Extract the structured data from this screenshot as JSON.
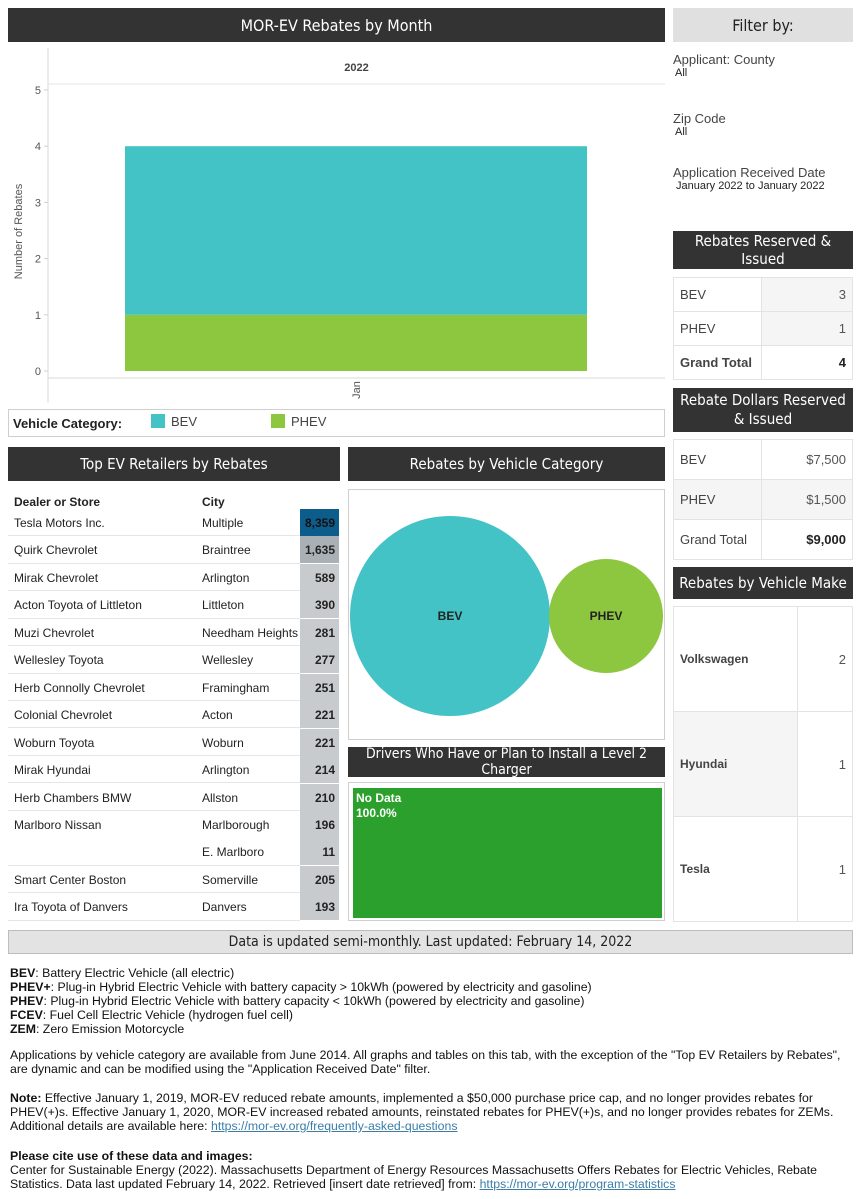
{
  "titles": {
    "main_chart": "MOR-EV Rebates by Month",
    "filter": "Filter by:",
    "reserved_issued": "Rebates Reserved & Issued",
    "dollars": "Rebate Dollars Reserved & Issued",
    "make": "Rebates by Vehicle Make",
    "retailers": "Top EV Retailers by Rebates",
    "category": "Rebates by Vehicle Category",
    "charger": "Drivers Who Have or Plan to Install a Level 2 Charger"
  },
  "chart_data": [
    {
      "type": "bar",
      "title": "MOR-EV Rebates by Month",
      "panel_header": "2022",
      "categories": [
        "Jan"
      ],
      "series": [
        {
          "name": "PHEV",
          "values": [
            1
          ],
          "color": "#8dc63f"
        },
        {
          "name": "BEV",
          "values": [
            3
          ],
          "color": "#43c3c6"
        }
      ],
      "stacked": true,
      "ylabel": "Number of Rebates",
      "xlabel": "",
      "ylim": [
        0,
        5
      ],
      "yticks": [
        "0",
        "1",
        "2",
        "3",
        "4",
        "5"
      ]
    },
    {
      "type": "bubble",
      "title": "Rebates by Vehicle Category",
      "categories": [
        "BEV",
        "PHEV"
      ],
      "values": [
        3,
        1
      ],
      "colors": [
        "#43c3c6",
        "#8dc63f"
      ]
    },
    {
      "type": "treemap",
      "title": "Drivers Who Have or Plan to Install a Level 2 Charger",
      "categories": [
        "No Data"
      ],
      "values": [
        "100.0%"
      ],
      "colors": [
        "#2ca02c"
      ]
    }
  ],
  "legend": {
    "label": "Vehicle Category:",
    "items": [
      {
        "name": "BEV",
        "color": "#43c3c6"
      },
      {
        "name": "PHEV",
        "color": "#8dc63f"
      }
    ]
  },
  "filters": {
    "county_label": "Applicant: County",
    "county_value": "All",
    "zip_label": "Zip Code",
    "zip_value": "All",
    "date_label": "Application Received Date",
    "date_value": "January 2022 to January 2022"
  },
  "reserved": {
    "rows": [
      {
        "label": "BEV",
        "value": "3"
      },
      {
        "label": "PHEV",
        "value": "1"
      }
    ],
    "total_label": "Grand Total",
    "total_value": "4"
  },
  "dollars": {
    "rows": [
      {
        "label": "BEV",
        "value": "$7,500"
      },
      {
        "label": "PHEV",
        "value": "$1,500"
      }
    ],
    "total_label": "Grand Total",
    "total_value": "$9,000"
  },
  "makes": [
    {
      "name": "Volkswagen",
      "value": "2"
    },
    {
      "name": "Hyundai",
      "value": "1"
    },
    {
      "name": "Tesla",
      "value": "1"
    }
  ],
  "retailers": {
    "col_dealer": "Dealer or Store",
    "col_city": "City",
    "rows": [
      {
        "dealer": "Tesla Motors Inc.",
        "city": "Multiple",
        "count": "8,359"
      },
      {
        "dealer": "Quirk Chevrolet",
        "city": "Braintree",
        "count": "1,635"
      },
      {
        "dealer": "Mirak Chevrolet",
        "city": "Arlington",
        "count": "589"
      },
      {
        "dealer": "Acton Toyota of Littleton",
        "city": "Littleton",
        "count": "390"
      },
      {
        "dealer": "Muzi Chevrolet",
        "city": "Needham Heights",
        "count": "281"
      },
      {
        "dealer": "Wellesley Toyota",
        "city": "Wellesley",
        "count": "277"
      },
      {
        "dealer": "Herb Connolly Chevrolet",
        "city": "Framingham",
        "count": "251"
      },
      {
        "dealer": "Colonial Chevrolet",
        "city": "Acton",
        "count": "221"
      },
      {
        "dealer": "Woburn Toyota",
        "city": "Woburn",
        "count": "221"
      },
      {
        "dealer": "Mirak Hyundai",
        "city": "Arlington",
        "count": "214"
      },
      {
        "dealer": "Herb Chambers BMW",
        "city": "Allston",
        "count": "210"
      },
      {
        "dealer": "Marlboro Nissan",
        "city": "Marlborough",
        "count": "196"
      },
      {
        "dealer": "",
        "city": "E. Marlboro",
        "count": "11"
      },
      {
        "dealer": "Smart Center Boston",
        "city": "Somerville",
        "count": "205"
      },
      {
        "dealer": "Ira Toyota of Danvers",
        "city": "Danvers",
        "count": "193"
      }
    ]
  },
  "update_banner": "Data is updated semi-monthly. Last updated: February 14, 2022",
  "definitions": [
    {
      "term": "BEV",
      "desc": ": Battery Electric Vehicle (all electric)"
    },
    {
      "term": "PHEV+",
      "desc": ": Plug-in Hybrid Electric Vehicle with battery capacity > 10kWh (powered by electricity and gasoline)"
    },
    {
      "term": "PHEV",
      "desc": ": Plug-in Hybrid Electric Vehicle with battery capacity < 10kWh (powered by electricity and gasoline)"
    },
    {
      "term": "FCEV",
      "desc": ": Fuel Cell Electric Vehicle (hydrogen fuel cell)"
    },
    {
      "term": "ZEM",
      "desc": ": Zero Emission Motorcycle"
    }
  ],
  "para_applications": "Applications by vehicle category are available from June 2014. All graphs and tables on this tab, with the exception of the \"Top EV Retailers by Rebates\", are dynamic and can be modified using the \"Application Received Date\" filter.",
  "note": {
    "label": "Note:",
    "text": " Effective January 1, 2019, MOR-EV reduced rebate amounts, implemented a $50,000 purchase price cap, and no longer provides rebates for PHEV(+)s. Effective January 1, 2020, MOR-EV increased rebated amounts, reinstated rebates for PHEV(+)s, and no longer provides rebates for ZEMs. Additional details are available here: ",
    "link": "https://mor-ev.org/frequently-asked-questions"
  },
  "cite": {
    "heading": "Please cite use of these data and images:",
    "text": "Center for Sustainable Energy (2022). Massachusetts Department of Energy Resources Massachusetts Offers Rebates for Electric Vehicles, Rebate Statistics. Data last updated February 14, 2022. Retrieved [insert date retrieved] from: ",
    "link": "https://mor-ev.org/program-statistics"
  }
}
